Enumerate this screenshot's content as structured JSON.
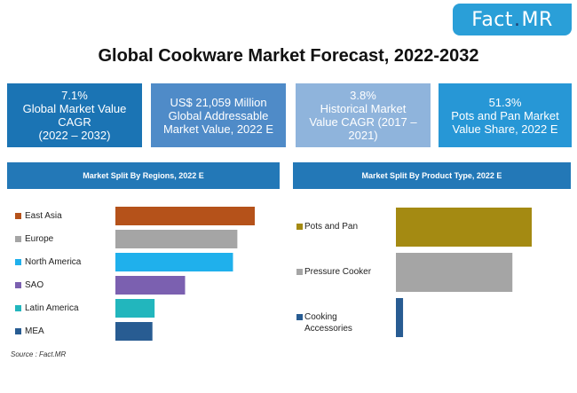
{
  "brand": {
    "name_part1": "Fact",
    "dot": ".",
    "name_part2": "MR"
  },
  "title": "Global Cookware Market Forecast, 2022-2032",
  "kpis": [
    {
      "value": "7.1%",
      "label_lines": [
        "Global Market Value",
        "CAGR",
        "(2022 – 2032)"
      ]
    },
    {
      "value": "US$ 21,059 Million",
      "label_lines": [
        "Global Addressable",
        "Market Value, 2022 E"
      ]
    },
    {
      "value": "3.8%",
      "label_lines": [
        "Historical Market",
        "Value CAGR (2017 –",
        "2021)"
      ]
    },
    {
      "value": "51.3%",
      "label_lines": [
        "Pots and Pan Market",
        "Value Share, 2022 E"
      ]
    }
  ],
  "source": "Source : Fact.MR",
  "chart_data": [
    {
      "type": "bar",
      "orientation": "horizontal",
      "title": "Market Split By Regions, 2022 E",
      "categories": [
        "East Asia",
        "Europe",
        "North America",
        "SAO",
        "Latin America",
        "MEA"
      ],
      "values": [
        32,
        28,
        27,
        16,
        9,
        8.5
      ],
      "colors": [
        "#b5521a",
        "#a5a5a5",
        "#1fb0ec",
        "#7b60b0",
        "#22b6bd",
        "#285c92"
      ],
      "grid": false,
      "legend": "left"
    },
    {
      "type": "bar",
      "orientation": "horizontal",
      "title": "Market Split By Product Type, 2022 E",
      "categories": [
        "Pots and Pan",
        "Pressure Cooker",
        "Cooking Accessories"
      ],
      "category_lines": [
        [
          "Pots and Pan"
        ],
        [
          "Pressure Cooker"
        ],
        [
          "Cooking",
          "Accessories"
        ]
      ],
      "values": [
        51.3,
        44,
        2.7
      ],
      "colors": [
        "#a48a12",
        "#a5a5a5",
        "#285c92"
      ],
      "grid": false,
      "legend": "left"
    }
  ]
}
